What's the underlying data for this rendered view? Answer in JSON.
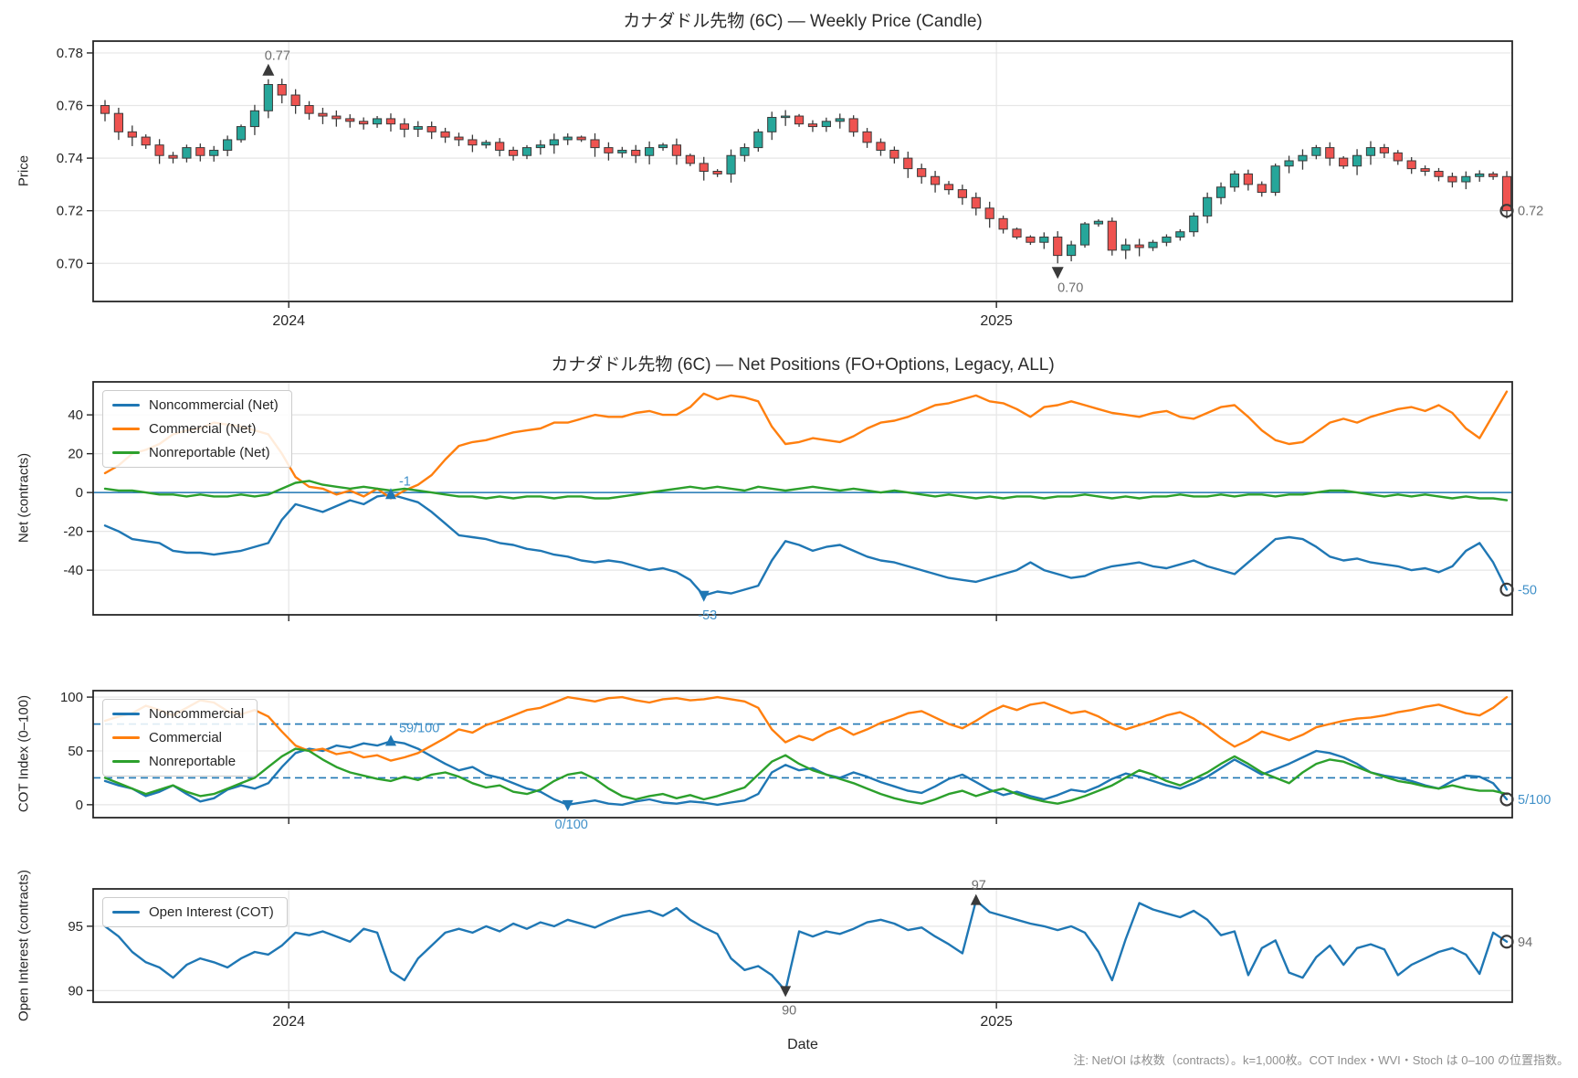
{
  "titles": {
    "price": "カナダドル先物 (6C) — Weekly Price (Candle)",
    "net": "カナダドル先物 (6C) — Net Positions (FO+Options, Legacy, ALL)"
  },
  "axis": {
    "xlabel": "Date",
    "price_ylabel": "Price",
    "net_ylabel": "Net (contracts)",
    "cot_ylabel": "COT Index (0–100)",
    "oi_ylabel": "Open Interest (contracts)"
  },
  "note": "注: Net/OI は枚数（contracts）。k=1,000枚。COT Index・WVI・Stoch は 0–100 の位置指数。",
  "legends": {
    "net": [
      "Noncommercial (Net)",
      "Commercial (Net)",
      "Nonreportable (Net)"
    ],
    "cot": [
      "Noncommercial",
      "Commercial",
      "Nonreportable"
    ],
    "oi": [
      "Open Interest (COT)"
    ]
  },
  "colors": {
    "blue": "#1f77b4",
    "orange": "#ff7f0e",
    "green": "#2ca02c",
    "up": "#26a69a",
    "down": "#ef5350",
    "wick": "#3a3a3a",
    "grid": "#e6e6e6",
    "frame": "#262626",
    "marker_dark": "#3a3a3a",
    "annot_gray": "#6e6e6e",
    "annot_blue": "#4191c9"
  },
  "chart_data": [
    {
      "type": "candlestick",
      "name": "price",
      "title": "カナダドル先物 (6C) — Weekly Price (Candle)",
      "ylabel": "Price",
      "ylim": [
        0.6855,
        0.7845
      ],
      "yticks": [
        0.7,
        0.72,
        0.74,
        0.76,
        0.78
      ],
      "ytick_labels": [
        "0.70",
        "0.72",
        "0.74",
        "0.76",
        "0.78"
      ],
      "xticks": [
        {
          "pos": 13.5,
          "label": "2024"
        },
        {
          "pos": 65.5,
          "label": "2025"
        }
      ],
      "show_xlabels": true,
      "annot_color": "gray",
      "open_first": 0.76,
      "closes": [
        0.757,
        0.75,
        0.748,
        0.745,
        0.741,
        0.74,
        0.744,
        0.741,
        0.743,
        0.747,
        0.752,
        0.758,
        0.768,
        0.764,
        0.76,
        0.757,
        0.756,
        0.755,
        0.754,
        0.753,
        0.755,
        0.753,
        0.751,
        0.752,
        0.75,
        0.748,
        0.747,
        0.745,
        0.746,
        0.743,
        0.741,
        0.744,
        0.745,
        0.747,
        0.748,
        0.747,
        0.744,
        0.742,
        0.743,
        0.741,
        0.744,
        0.745,
        0.741,
        0.738,
        0.735,
        0.734,
        0.741,
        0.744,
        0.75,
        0.7555,
        0.756,
        0.753,
        0.752,
        0.754,
        0.755,
        0.75,
        0.746,
        0.743,
        0.74,
        0.736,
        0.733,
        0.73,
        0.728,
        0.725,
        0.721,
        0.717,
        0.713,
        0.71,
        0.708,
        0.71,
        0.703,
        0.707,
        0.715,
        0.716,
        0.705,
        0.707,
        0.706,
        0.708,
        0.71,
        0.712,
        0.718,
        0.725,
        0.729,
        0.734,
        0.73,
        0.727,
        0.737,
        0.739,
        0.741,
        0.744,
        0.74,
        0.737,
        0.741,
        0.744,
        0.742,
        0.739,
        0.736,
        0.735,
        0.733,
        0.731,
        0.733,
        0.734,
        0.733,
        0.72
      ],
      "annotations": [
        {
          "i": 12,
          "value": 0.77,
          "label": "0.77",
          "marker": "peak",
          "anchor": "high"
        },
        {
          "i": 70,
          "value": 0.7,
          "label": "0.70",
          "marker": "trough",
          "anchor": "low"
        },
        {
          "i": 103,
          "value": 0.72,
          "label": "0.72",
          "marker": "last",
          "anchor": "close"
        }
      ]
    },
    {
      "type": "line",
      "name": "net",
      "title": "カナダドル先物 (6C) — Net Positions (FO+Options, Legacy, ALL)",
      "ylabel": "Net (contracts)",
      "ylim": [
        -63,
        57
      ],
      "yticks": [
        -40,
        -20,
        0,
        20,
        40
      ],
      "ytick_labels": [
        "-40",
        "-20",
        "0",
        "20",
        "40"
      ],
      "xticks": [
        {
          "pos": 13.5,
          "label": "2024"
        },
        {
          "pos": 65.5,
          "label": "2025"
        }
      ],
      "show_xlabels": false,
      "zero_line": true,
      "annot_color": "blue",
      "series": [
        {
          "name": "Noncommercial (Net)",
          "color": "blue",
          "values": [
            -17,
            -20,
            -24,
            -25,
            -26,
            -30,
            -31,
            -31,
            -32,
            -31,
            -30,
            -28,
            -26,
            -14,
            -6,
            -8,
            -10,
            -7,
            -4,
            -6,
            -2,
            -1,
            -3,
            -5,
            -10,
            -16,
            -22,
            -23,
            -24,
            -26,
            -27,
            -29,
            -30,
            -32,
            -33,
            -35,
            -36,
            -35,
            -36,
            -38,
            -40,
            -39,
            -41,
            -45,
            -53,
            -51,
            -52,
            -50,
            -48,
            -35,
            -25,
            -27,
            -30,
            -28,
            -27,
            -30,
            -33,
            -35,
            -36,
            -38,
            -40,
            -42,
            -44,
            -45,
            -46,
            -44,
            -42,
            -40,
            -36,
            -40,
            -42,
            -44,
            -43,
            -40,
            -38,
            -37,
            -36,
            -38,
            -39,
            -37,
            -35,
            -38,
            -40,
            -42,
            -36,
            -30,
            -24,
            -23,
            -24,
            -28,
            -33,
            -35,
            -34,
            -36,
            -37,
            -38,
            -40,
            -39,
            -41,
            -38,
            -30,
            -26,
            -36,
            -50
          ]
        },
        {
          "name": "Commercial (Net)",
          "color": "orange",
          "values": [
            10,
            14,
            20,
            22,
            25,
            30,
            32,
            33,
            36,
            35,
            34,
            32,
            30,
            20,
            8,
            3,
            2,
            -1,
            1,
            -2,
            2,
            -3,
            1,
            4,
            9,
            17,
            24,
            26,
            27,
            29,
            31,
            32,
            33,
            36,
            36,
            38,
            40,
            39,
            39,
            41,
            42,
            40,
            40,
            44,
            51,
            48,
            50,
            49,
            47,
            34,
            25,
            26,
            28,
            27,
            26,
            29,
            33,
            36,
            37,
            39,
            42,
            45,
            46,
            48,
            50,
            47,
            46,
            43,
            39,
            44,
            45,
            47,
            45,
            43,
            41,
            40,
            39,
            41,
            42,
            39,
            38,
            41,
            44,
            45,
            39,
            32,
            27,
            25,
            26,
            31,
            36,
            38,
            36,
            39,
            41,
            43,
            44,
            42,
            45,
            41,
            33,
            28,
            40,
            52
          ]
        },
        {
          "name": "Nonreportable (Net)",
          "color": "green",
          "values": [
            2,
            1,
            1,
            0,
            -1,
            -1,
            -2,
            -1,
            -2,
            -2,
            -1,
            -2,
            -1,
            2,
            5,
            6,
            4,
            3,
            2,
            3,
            2,
            1,
            2,
            1,
            0,
            -1,
            -2,
            -2,
            -3,
            -2,
            -3,
            -2,
            -2,
            -3,
            -2,
            -2,
            -3,
            -3,
            -2,
            -1,
            0,
            1,
            2,
            3,
            2,
            3,
            2,
            1,
            3,
            2,
            1,
            2,
            3,
            2,
            1,
            2,
            1,
            0,
            1,
            0,
            -1,
            -2,
            -1,
            -2,
            -3,
            -2,
            -3,
            -2,
            -2,
            -3,
            -2,
            -2,
            -1,
            -2,
            -3,
            -2,
            -3,
            -2,
            -2,
            -1,
            -2,
            -2,
            -1,
            -2,
            -1,
            -1,
            -2,
            -1,
            -1,
            0,
            1,
            1,
            0,
            -1,
            -2,
            -1,
            -2,
            -1,
            -2,
            -3,
            -2,
            -3,
            -3,
            -4
          ]
        }
      ],
      "annotations": [
        {
          "i": 21,
          "value": -1,
          "label": "-1",
          "marker": "peak"
        },
        {
          "i": 44,
          "value": -53,
          "label": "-53",
          "marker": "trough"
        },
        {
          "i": 103,
          "value": -50,
          "label": "-50",
          "marker": "last"
        }
      ]
    },
    {
      "type": "line",
      "name": "cot",
      "ylabel": "COT Index (0–100)",
      "ylim": [
        -12,
        106
      ],
      "yticks": [
        0,
        50,
        100
      ],
      "ytick_labels": [
        "0",
        "50",
        "100"
      ],
      "hlines_dashed": [
        25,
        75
      ],
      "xticks": [
        {
          "pos": 13.5,
          "label": "2024"
        },
        {
          "pos": 65.5,
          "label": "2025"
        }
      ],
      "show_xlabels": false,
      "annot_color": "blue",
      "series": [
        {
          "name": "Noncommercial",
          "color": "blue",
          "values": [
            22,
            18,
            15,
            8,
            12,
            18,
            10,
            3,
            6,
            14,
            18,
            15,
            20,
            35,
            48,
            52,
            50,
            55,
            53,
            57,
            55,
            59,
            57,
            52,
            45,
            38,
            32,
            35,
            28,
            25,
            20,
            15,
            12,
            5,
            0,
            2,
            4,
            1,
            0,
            3,
            5,
            2,
            1,
            3,
            2,
            0,
            2,
            4,
            10,
            30,
            37,
            32,
            34,
            28,
            25,
            30,
            26,
            21,
            17,
            13,
            11,
            17,
            24,
            28,
            21,
            14,
            9,
            12,
            8,
            5,
            9,
            14,
            12,
            17,
            24,
            29,
            26,
            22,
            18,
            15,
            20,
            26,
            34,
            42,
            35,
            28,
            33,
            38,
            44,
            50,
            48,
            44,
            38,
            30,
            27,
            25,
            22,
            18,
            15,
            22,
            27,
            26,
            20,
            5
          ]
        },
        {
          "name": "Commercial",
          "color": "orange",
          "values": [
            78,
            82,
            85,
            92,
            88,
            83,
            90,
            97,
            95,
            87,
            84,
            88,
            82,
            68,
            55,
            50,
            52,
            47,
            49,
            44,
            46,
            41,
            44,
            48,
            55,
            62,
            70,
            67,
            74,
            78,
            83,
            88,
            90,
            95,
            100,
            98,
            96,
            99,
            100,
            97,
            95,
            98,
            99,
            97,
            98,
            100,
            98,
            96,
            90,
            70,
            58,
            64,
            60,
            67,
            72,
            65,
            70,
            76,
            80,
            85,
            87,
            81,
            75,
            71,
            78,
            86,
            92,
            88,
            93,
            95,
            90,
            85,
            87,
            82,
            75,
            70,
            74,
            78,
            83,
            86,
            80,
            72,
            62,
            54,
            60,
            68,
            64,
            60,
            65,
            72,
            75,
            78,
            80,
            81,
            83,
            86,
            88,
            91,
            93,
            89,
            85,
            83,
            90,
            100
          ]
        },
        {
          "name": "Nonreportable",
          "color": "green",
          "values": [
            25,
            20,
            15,
            10,
            14,
            18,
            12,
            8,
            10,
            15,
            20,
            25,
            35,
            45,
            52,
            50,
            42,
            35,
            30,
            27,
            24,
            22,
            26,
            23,
            28,
            30,
            26,
            20,
            16,
            18,
            12,
            10,
            14,
            22,
            28,
            30,
            24,
            15,
            8,
            5,
            8,
            10,
            6,
            9,
            5,
            8,
            12,
            16,
            28,
            40,
            46,
            38,
            32,
            28,
            24,
            20,
            15,
            10,
            6,
            3,
            1,
            5,
            10,
            13,
            8,
            12,
            15,
            10,
            6,
            3,
            1,
            4,
            8,
            13,
            18,
            25,
            32,
            28,
            22,
            18,
            24,
            30,
            38,
            45,
            38,
            30,
            25,
            20,
            30,
            38,
            42,
            40,
            35,
            30,
            26,
            22,
            20,
            17,
            15,
            18,
            15,
            13,
            13,
            10
          ]
        }
      ],
      "annotations": [
        {
          "i": 21,
          "value": 59,
          "label": "59/100",
          "marker": "peak"
        },
        {
          "i": 34,
          "value": 0,
          "label": "0/100",
          "marker": "trough"
        },
        {
          "i": 103,
          "value": 5,
          "label": "5/100",
          "marker": "last"
        }
      ]
    },
    {
      "type": "line",
      "name": "oi",
      "ylabel": "Open Interest (contracts)",
      "ylim": [
        89.1,
        97.9
      ],
      "yticks": [
        90,
        95
      ],
      "ytick_labels": [
        "90",
        "95"
      ],
      "xticks": [
        {
          "pos": 13.5,
          "label": "2024"
        },
        {
          "pos": 65.5,
          "label": "2025"
        }
      ],
      "show_xlabels": true,
      "annot_color": "gray",
      "series": [
        {
          "name": "Open Interest (COT)",
          "color": "blue",
          "values": [
            95.0,
            94.2,
            93.0,
            92.2,
            91.8,
            91.0,
            92.0,
            92.5,
            92.2,
            91.8,
            92.5,
            93.0,
            92.8,
            93.5,
            94.5,
            94.3,
            94.6,
            94.2,
            93.8,
            94.8,
            94.5,
            91.5,
            90.8,
            92.5,
            93.5,
            94.5,
            94.8,
            94.5,
            95.0,
            94.6,
            95.2,
            94.8,
            95.3,
            95.0,
            95.5,
            95.2,
            94.9,
            95.4,
            95.8,
            96.0,
            96.2,
            95.8,
            96.4,
            95.5,
            94.9,
            94.4,
            92.5,
            91.6,
            91.9,
            91.2,
            90.0,
            94.6,
            94.2,
            94.6,
            94.4,
            94.8,
            95.3,
            95.5,
            95.2,
            94.7,
            94.9,
            94.2,
            93.6,
            92.9,
            97.0,
            96.1,
            95.8,
            95.5,
            95.2,
            95.0,
            94.7,
            95.0,
            94.5,
            93.0,
            90.8,
            94.0,
            96.8,
            96.3,
            96.0,
            95.7,
            96.2,
            95.5,
            94.3,
            94.6,
            91.2,
            93.3,
            93.9,
            91.4,
            91.0,
            92.6,
            93.5,
            92.0,
            93.3,
            93.6,
            93.2,
            91.2,
            92.0,
            92.5,
            93.0,
            93.3,
            92.8,
            91.3,
            94.5,
            93.8
          ]
        }
      ],
      "annotations": [
        {
          "i": 64,
          "value": 97,
          "label": "97",
          "marker": "peak"
        },
        {
          "i": 50,
          "value": 90,
          "label": "90",
          "marker": "trough"
        },
        {
          "i": 103,
          "value": 94,
          "label": "94",
          "marker": "last"
        }
      ]
    }
  ]
}
